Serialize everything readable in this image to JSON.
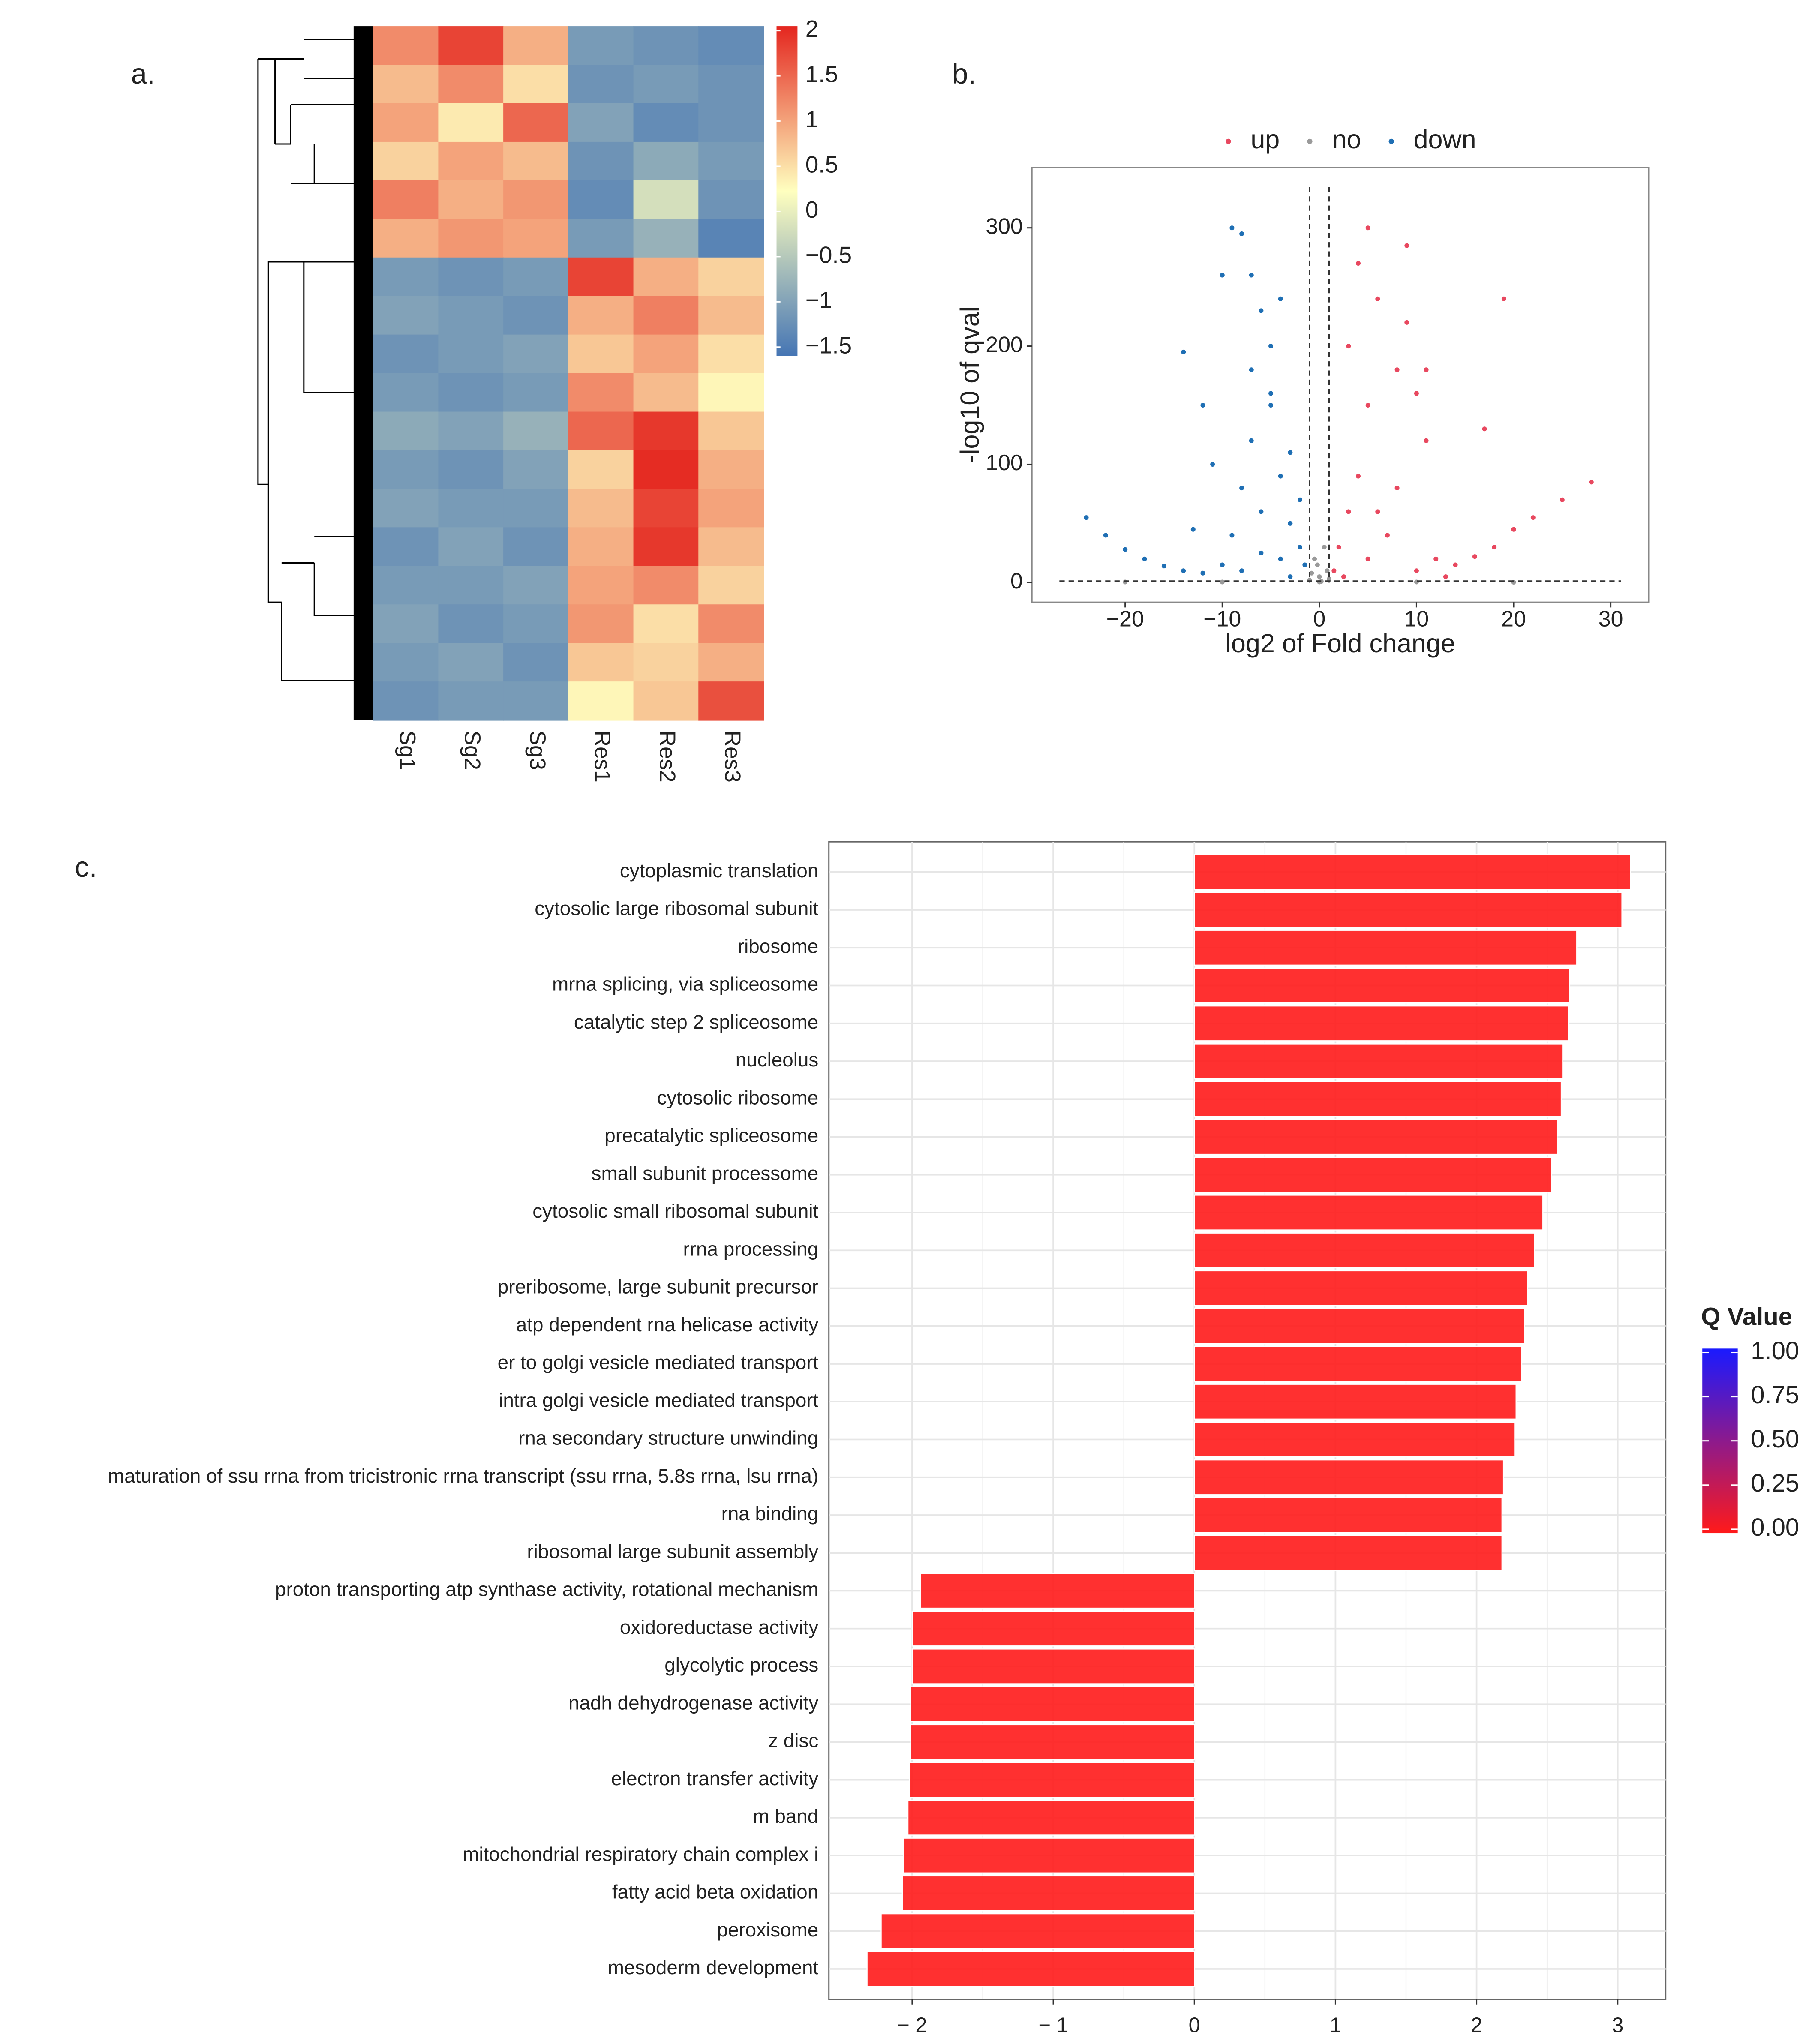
{
  "chart_data": [
    {
      "type": "heatmap",
      "panel_label": "a.",
      "columns": [
        "Sg1",
        "Sg2",
        "Sg3",
        "Res1",
        "Res2",
        "Res3"
      ],
      "matrix": [
        [
          1.2,
          1.8,
          0.9,
          -1.1,
          -1.2,
          -1.3
        ],
        [
          0.8,
          1.2,
          0.5,
          -1.2,
          -1.1,
          -1.2
        ],
        [
          1.0,
          0.4,
          1.5,
          -1.0,
          -1.3,
          -1.2
        ],
        [
          0.6,
          1.0,
          0.8,
          -1.2,
          -0.9,
          -1.1
        ],
        [
          1.3,
          0.9,
          1.1,
          -1.3,
          -0.2,
          -1.2
        ],
        [
          0.9,
          1.1,
          1.0,
          -1.1,
          -0.8,
          -1.4
        ],
        [
          -1.1,
          -1.2,
          -1.1,
          1.8,
          0.9,
          0.6
        ],
        [
          -1.0,
          -1.1,
          -1.2,
          0.9,
          1.3,
          0.8
        ],
        [
          -1.2,
          -1.1,
          -1.0,
          0.7,
          1.0,
          0.5
        ],
        [
          -1.1,
          -1.2,
          -1.1,
          1.2,
          0.8,
          0.3
        ],
        [
          -0.9,
          -1.0,
          -0.8,
          1.5,
          1.9,
          0.7
        ],
        [
          -1.1,
          -1.2,
          -1.0,
          0.6,
          2.0,
          0.9
        ],
        [
          -1.0,
          -1.1,
          -1.1,
          0.8,
          1.8,
          1.0
        ],
        [
          -1.2,
          -1.0,
          -1.2,
          0.9,
          1.9,
          0.8
        ],
        [
          -1.1,
          -1.1,
          -1.0,
          1.0,
          1.2,
          0.6
        ],
        [
          -1.0,
          -1.2,
          -1.1,
          1.1,
          0.5,
          1.2
        ],
        [
          -1.1,
          -1.0,
          -1.2,
          0.7,
          0.6,
          0.9
        ],
        [
          -1.2,
          -1.1,
          -1.1,
          0.3,
          0.7,
          1.7
        ]
      ],
      "zlim": [
        -1.6,
        2.05
      ],
      "zticks": [
        2,
        1.5,
        1,
        0.5,
        0,
        {
          "value": -0.5,
          "label": "−0.5"
        },
        {
          "value": -1,
          "label": "−1"
        },
        {
          "value": -1.5,
          "label": "−1.5"
        }
      ],
      "colorscale": [
        "#4575b4",
        "#ffffbf",
        "#e4261f"
      ]
    },
    {
      "type": "scatter",
      "panel_label": "b.",
      "legend": "top",
      "x_label": "log2 of Fold change",
      "y_label": "-log10 of qval",
      "xlim": [
        -29.6,
        33.9
      ],
      "ylim": [
        -16.6,
        351
      ],
      "xticks": [
        {
          "value": -20,
          "label": "−20"
        },
        {
          "value": -10,
          "label": "−10"
        },
        0,
        10,
        20,
        30
      ],
      "yticks": [
        0,
        100,
        200,
        300
      ],
      "thresholds": {
        "x": [
          -1,
          1
        ],
        "y": 1.3
      },
      "series": [
        {
          "name": "up",
          "color": "#e8485f",
          "x": [
            1.5,
            2,
            3,
            4,
            5,
            4,
            5,
            6,
            3,
            8,
            9,
            9,
            10,
            11,
            8,
            6,
            7,
            12,
            14,
            16,
            18,
            20,
            22,
            25,
            28,
            19,
            17,
            13,
            10,
            5,
            2.5,
            11
          ],
          "y": [
            10,
            30,
            60,
            90,
            150,
            270,
            300,
            240,
            200,
            180,
            285,
            220,
            160,
            120,
            80,
            60,
            40,
            20,
            15,
            22,
            30,
            45,
            55,
            70,
            85,
            240,
            130,
            5,
            10,
            20,
            5,
            180
          ]
        },
        {
          "name": "no",
          "color": "#9a9a9a",
          "x": [
            -1,
            -0.5,
            0,
            0.5,
            0.8,
            -0.8,
            0.2,
            -0.2,
            0,
            1,
            -20,
            10,
            20,
            -10
          ],
          "y": [
            2,
            20,
            5,
            30,
            10,
            8,
            1,
            15,
            0.5,
            3,
            0.5,
            0.5,
            0.3,
            0.5
          ]
        },
        {
          "name": "down",
          "color": "#1f6fb4",
          "x": [
            -24,
            -22,
            -20,
            -18,
            -16,
            -14,
            -12,
            -10,
            -9,
            -8,
            -7,
            -6,
            -5,
            -4,
            -3,
            -2,
            -1.5,
            -9,
            -8,
            -10,
            -14,
            -12,
            -6,
            -5,
            -4,
            -7,
            -3,
            -2,
            -11,
            -13,
            -6,
            -4,
            -8,
            -3,
            -5,
            -7
          ],
          "y": [
            55,
            40,
            28,
            20,
            14,
            10,
            8,
            15,
            40,
            80,
            120,
            60,
            150,
            90,
            50,
            30,
            15,
            300,
            295,
            260,
            195,
            150,
            230,
            200,
            240,
            180,
            110,
            70,
            100,
            45,
            25,
            20,
            10,
            5,
            160,
            260
          ]
        }
      ]
    },
    {
      "type": "bar",
      "orientation": "horizontal",
      "panel_label": "c.",
      "categories": [
        "cytoplasmic translation",
        "cytosolic large ribosomal subunit",
        "ribosome",
        "mrna splicing, via spliceosome",
        "catalytic step 2 spliceosome",
        "nucleolus",
        "cytosolic ribosome",
        "precatalytic spliceosome",
        "small subunit processome",
        "cytosolic small ribosomal subunit",
        "rrna processing",
        "preribosome, large subunit precursor",
        "atp dependent rna helicase activity",
        "er to golgi vesicle mediated transport",
        "intra golgi vesicle mediated transport",
        "rna secondary structure unwinding",
        "maturation of ssu rrna from tricistronic rrna transcript (ssu rrna, 5.8s rrna, lsu rrna)",
        "rna binding",
        "ribosomal large subunit assembly",
        "proton transporting atp synthase activity, rotational mechanism",
        "oxidoreductase activity",
        "glycolytic process",
        "nadh dehydrogenase activity",
        "z disc",
        "electron transfer activity",
        "m band",
        "mitochondrial respiratory chain complex i",
        "fatty acid beta oxidation",
        "peroxisome",
        "mesoderm development"
      ],
      "values": [
        3.09,
        3.03,
        2.71,
        2.66,
        2.65,
        2.61,
        2.6,
        2.57,
        2.53,
        2.47,
        2.41,
        2.36,
        2.34,
        2.32,
        2.28,
        2.27,
        2.19,
        2.18,
        2.18,
        -1.94,
        -2.0,
        -2.0,
        -2.01,
        -2.01,
        -2.02,
        -2.03,
        -2.06,
        -2.07,
        -2.22,
        -2.32
      ],
      "q_values": [
        0,
        0,
        0,
        0,
        0,
        0,
        0,
        0,
        0,
        0,
        0,
        0,
        0,
        0,
        0,
        0,
        0,
        0,
        0,
        0,
        0,
        0,
        0,
        0,
        0,
        0,
        0,
        0,
        0,
        0
      ],
      "xlim": [
        -2.59,
        3.34
      ],
      "xticks": [
        {
          "value": -2,
          "label": "− 2"
        },
        {
          "value": -1,
          "label": "− 1"
        },
        0,
        1,
        2,
        3
      ],
      "grid": true,
      "colorbar": {
        "title": "Q Value",
        "lim": [
          0,
          1
        ],
        "colors": [
          "#ff1a1a",
          "#1a1aff"
        ],
        "ticks": [
          {
            "value": 1,
            "label": "1.00"
          },
          {
            "value": 0.75,
            "label": "0.75"
          },
          {
            "value": 0.5,
            "label": "0.50"
          },
          {
            "value": 0.25,
            "label": "0.25"
          },
          {
            "value": 0,
            "label": "0.00"
          }
        ]
      }
    }
  ]
}
